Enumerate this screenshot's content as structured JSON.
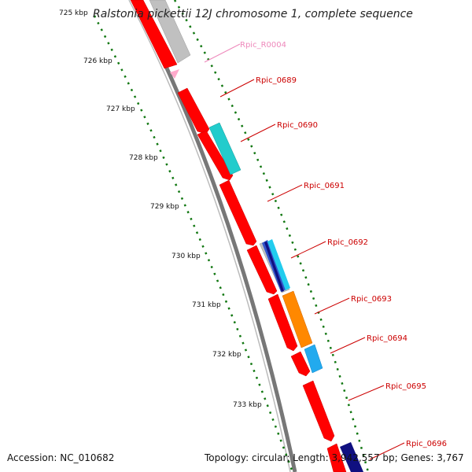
{
  "title": "Ralstonia pickettii 12J chromosome 1, complete sequence",
  "accession_text": "Accession: NC_010682",
  "summary_text": "Topology: circular; Length: 3,942,557 bp; Genes: 3,767",
  "colors": {
    "cds": "#ff0000",
    "rna": "#ffaacc",
    "tick": "#117711",
    "backbone": "#777777",
    "label_red": "#cc0000",
    "label_pink": "#ee88bb",
    "gray_feature": "#c0c0c0",
    "teal": "#22cccc",
    "orange": "#ff8800",
    "sky": "#22aaee",
    "navy": "#101080",
    "blue": "#3355cc"
  },
  "kbp_ticks": [
    "725 kbp",
    "726 kbp",
    "727 kbp",
    "728 kbp",
    "729 kbp",
    "730 kbp",
    "731 kbp",
    "732 kbp",
    "733 kbp"
  ],
  "gene_labels": [
    {
      "text": "Rpic_R0004",
      "color": "pink"
    },
    {
      "text": "Rpic_0689",
      "color": "red"
    },
    {
      "text": "Rpic_0690",
      "color": "red"
    },
    {
      "text": "Rpic_0691",
      "color": "red"
    },
    {
      "text": "Rpic_0692",
      "color": "red"
    },
    {
      "text": "Rpic_0693",
      "color": "red"
    },
    {
      "text": "Rpic_0694",
      "color": "red"
    },
    {
      "text": "Rpic_0695",
      "color": "red"
    },
    {
      "text": "Rpic_0696",
      "color": "red"
    }
  ]
}
